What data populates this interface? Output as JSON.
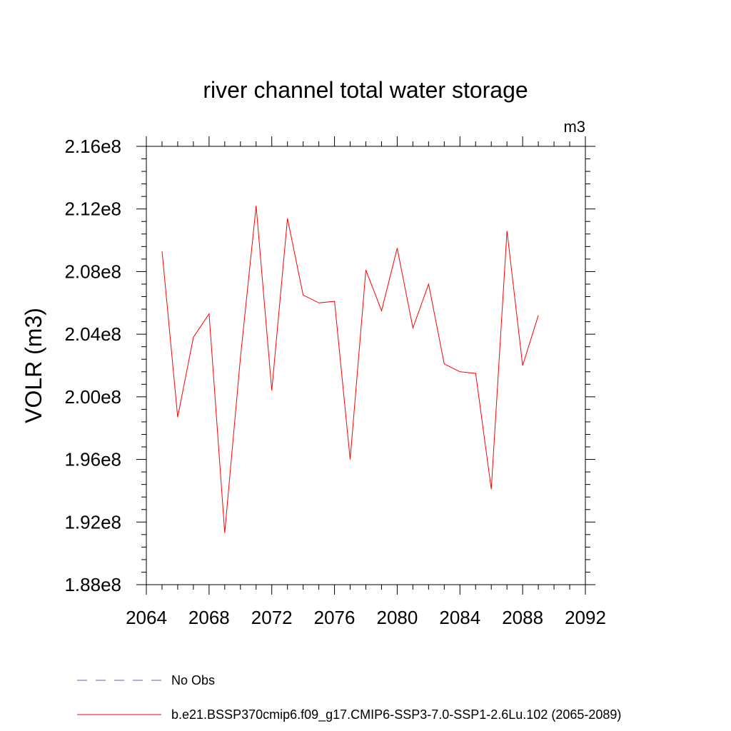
{
  "chart_data": {
    "type": "line",
    "title": "river channel total water storage",
    "units_label": "m3",
    "ylabel": "VOLR  (m3)",
    "xlabel": "",
    "xlim": [
      2064,
      2092
    ],
    "ylim": [
      188000000.0,
      216000000.0
    ],
    "x_ticks": [
      2064,
      2068,
      2072,
      2076,
      2080,
      2084,
      2088,
      2092
    ],
    "x_tick_labels": [
      "2064",
      "2068",
      "2072",
      "2076",
      "2080",
      "2084",
      "2088",
      "2092"
    ],
    "y_ticks": [
      188000000.0,
      192000000.0,
      196000000.0,
      200000000.0,
      204000000.0,
      208000000.0,
      212000000.0,
      216000000.0
    ],
    "y_tick_labels": [
      "1.88e8",
      "1.92e8",
      "1.96e8",
      "2.00e8",
      "2.04e8",
      "2.08e8",
      "2.12e8",
      "2.16e8"
    ],
    "series": [
      {
        "name": "b.e21.BSSP370cmip6.f09_g17.CMIP6-SSP3-7.0-SSP1-2.6Lu.102 (2065-2089)",
        "color": "#ff0000",
        "style": "solid",
        "x": [
          2065,
          2066,
          2067,
          2068,
          2069,
          2070,
          2071,
          2072,
          2073,
          2074,
          2075,
          2076,
          2077,
          2078,
          2079,
          2080,
          2081,
          2082,
          2083,
          2084,
          2085,
          2086,
          2087,
          2088,
          2089
        ],
        "values": [
          209300000.0,
          198700000.0,
          203800000.0,
          205300000.0,
          191300000.0,
          202500000.0,
          212200000.0,
          200400000.0,
          211400000.0,
          206500000.0,
          206000000.0,
          206100000.0,
          196000000.0,
          208100000.0,
          205500000.0,
          209500000.0,
          204400000.0,
          207200000.0,
          202100000.0,
          201600000.0,
          201500000.0,
          194100000.0,
          210600000.0,
          202000000.0,
          205200000.0
        ]
      }
    ],
    "legend": [
      {
        "label": "No Obs",
        "color": "#6a5acd",
        "style": "dashed"
      },
      {
        "label": "b.e21.BSSP370cmip6.f09_g17.CMIP6-SSP3-7.0-SSP1-2.6Lu.102 (2065-2089)",
        "color": "#ff0000",
        "style": "solid"
      }
    ],
    "legend_position": "bottom",
    "grid": false
  }
}
